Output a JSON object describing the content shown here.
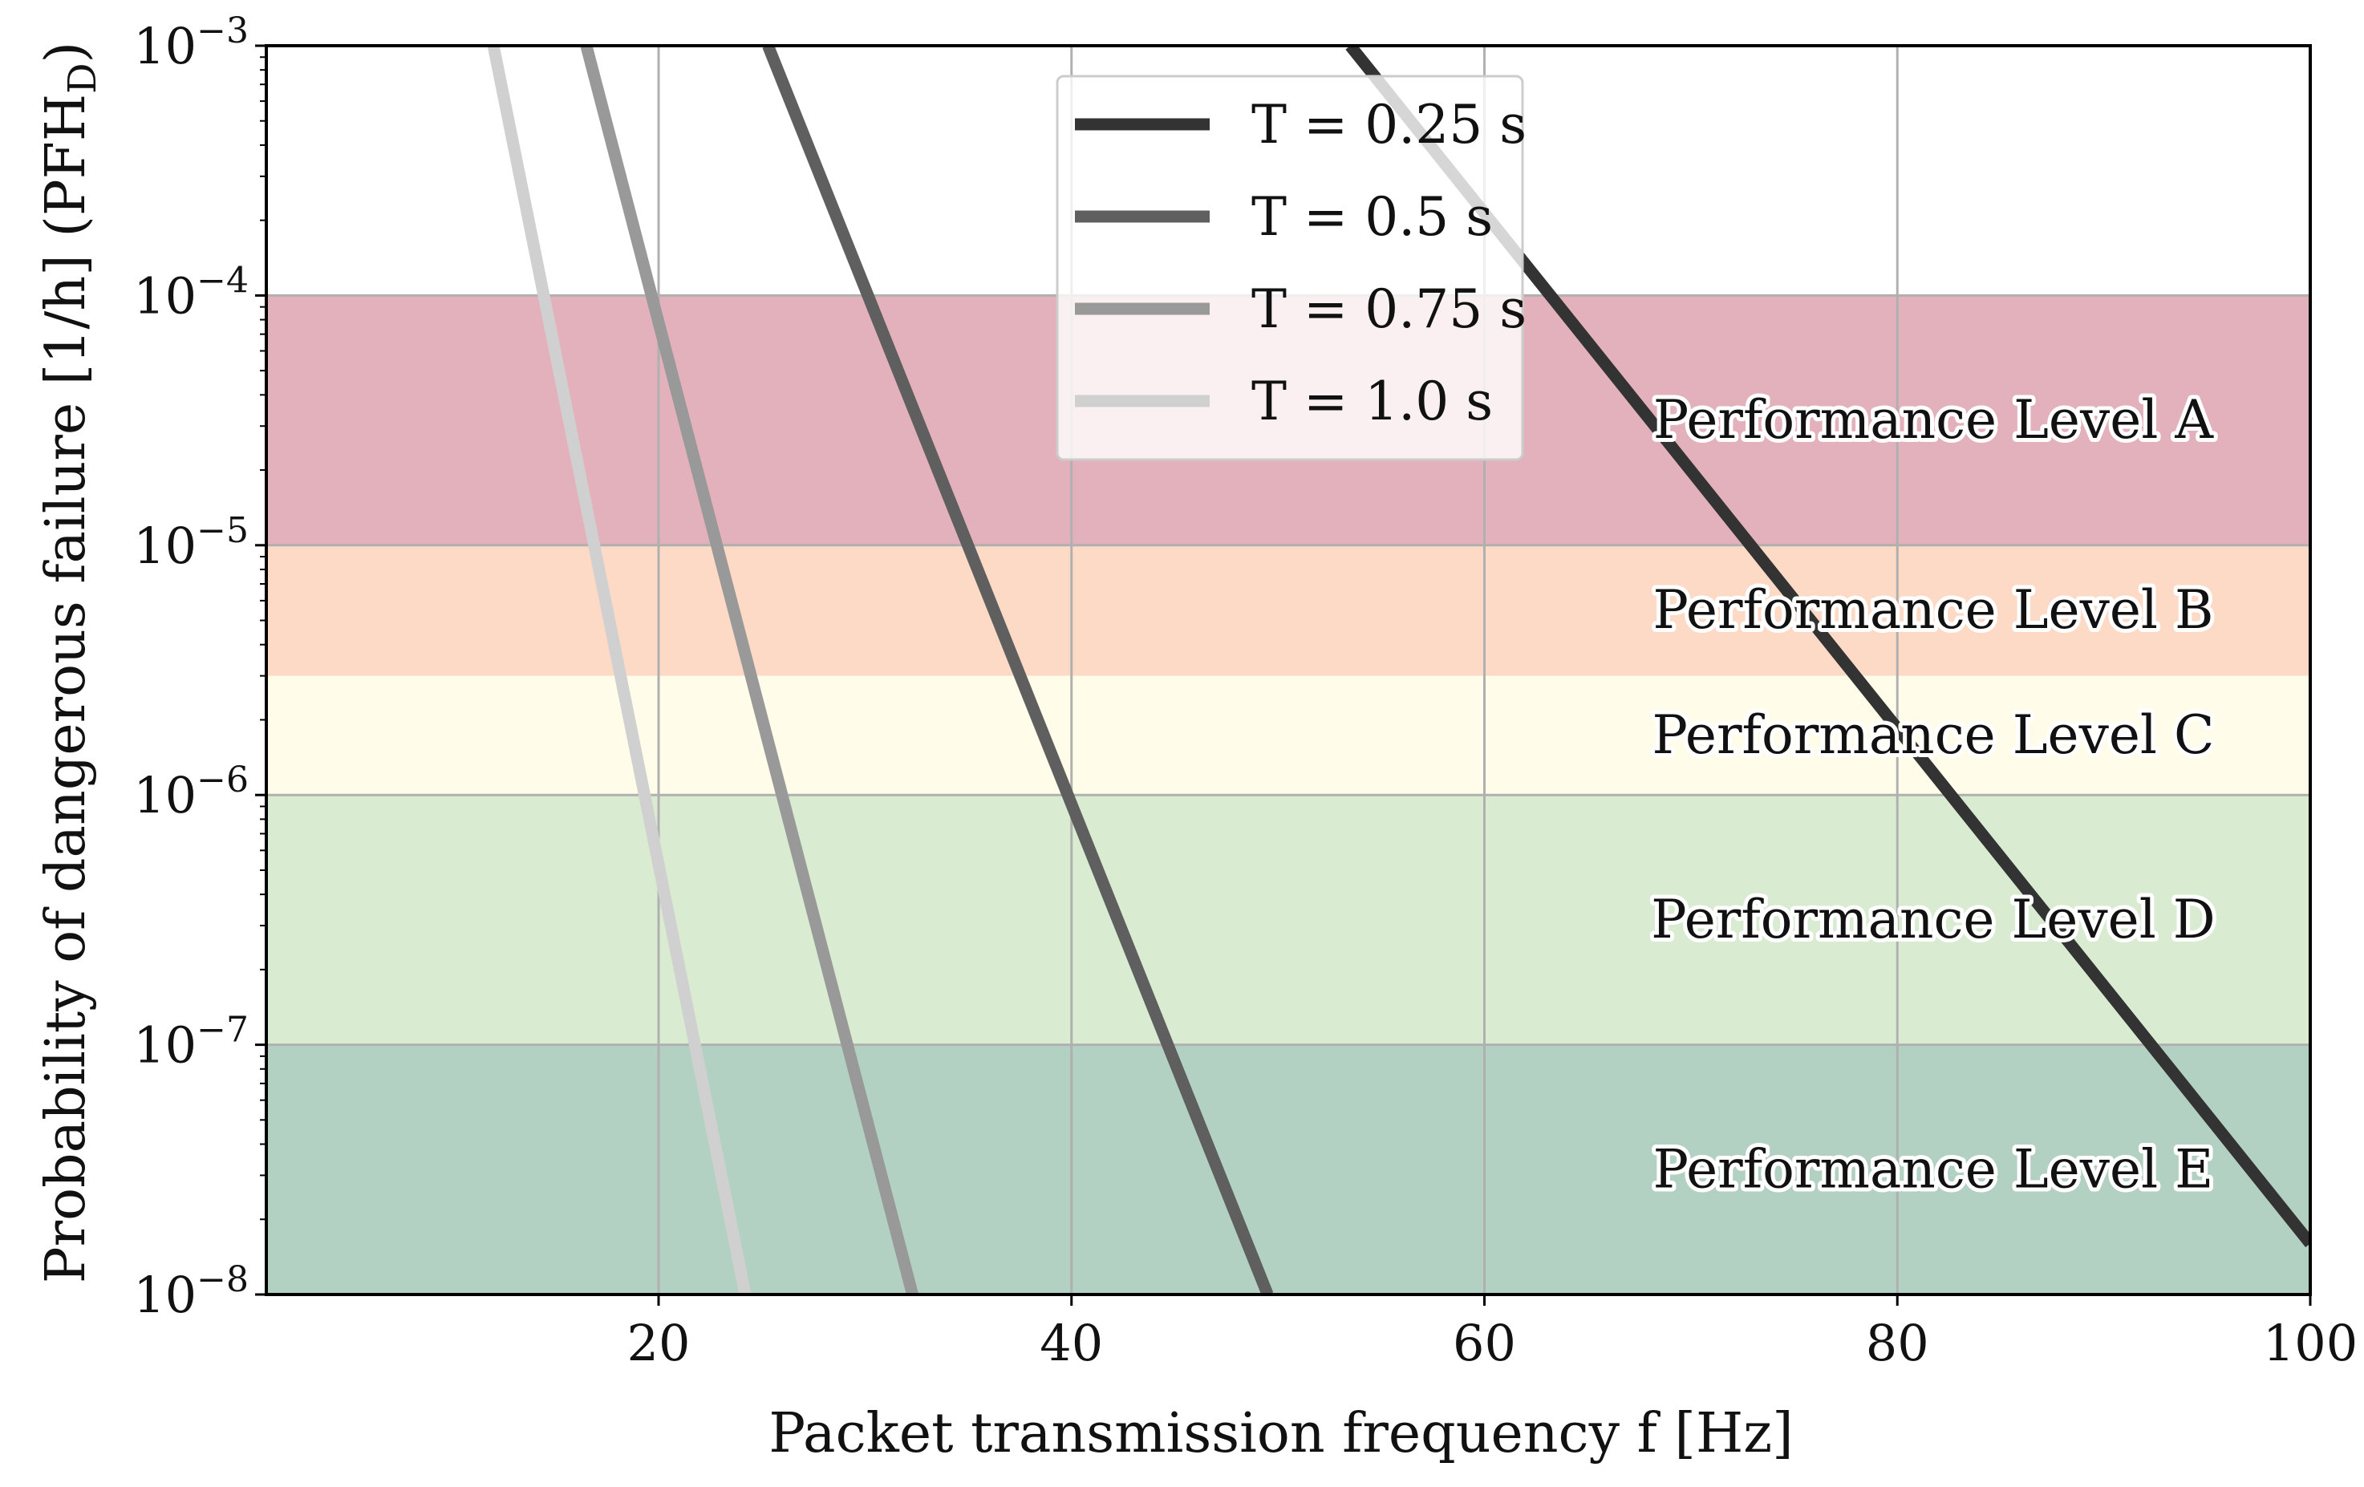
{
  "chart_data": {
    "type": "line",
    "title": "",
    "xlabel": "Packet transmission frequency f [Hz]",
    "ylabel": "Probability of dangerous failure [1/h] (PFH",
    "ylabel_subscript": "D",
    "ylabel_close": ")",
    "xlim": [
      1,
      100
    ],
    "ylim": [
      1e-08,
      0.001
    ],
    "yscale": "log",
    "grid": true,
    "legend_position": "top-center",
    "x_ticks": [
      {
        "value": 20,
        "label": "20"
      },
      {
        "value": 40,
        "label": "40"
      },
      {
        "value": 60,
        "label": "60"
      },
      {
        "value": 80,
        "label": "80"
      },
      {
        "value": 100,
        "label": "100"
      }
    ],
    "y_ticks": [
      {
        "value": 0.001,
        "base": "10",
        "exp": "−3"
      },
      {
        "value": 0.0001,
        "base": "10",
        "exp": "−4"
      },
      {
        "value": 1e-05,
        "base": "10",
        "exp": "−5"
      },
      {
        "value": 1e-06,
        "base": "10",
        "exp": "−6"
      },
      {
        "value": 1e-07,
        "base": "10",
        "exp": "−7"
      },
      {
        "value": 1e-08,
        "base": "10",
        "exp": "−8"
      }
    ],
    "bands": [
      {
        "label": "Performance Level A",
        "from": 1e-05,
        "to": 0.0001,
        "color": "#e3b1bb"
      },
      {
        "label": "Performance Level B",
        "from": 3e-06,
        "to": 1e-05,
        "color": "#fddac6"
      },
      {
        "label": "Performance Level C",
        "from": 1e-06,
        "to": 3e-06,
        "color": "#fffde9"
      },
      {
        "label": "Performance Level D",
        "from": 1e-07,
        "to": 1e-06,
        "color": "#d9ecd2"
      },
      {
        "label": "Performance Level E",
        "from": 1e-08,
        "to": 1e-07,
        "color": "#b3d1c2"
      }
    ],
    "series": [
      {
        "name": "T = 0.25 s",
        "color": "#333333",
        "x": [
          53.5,
          100
        ],
        "y": [
          0.001,
          1.6e-08
        ]
      },
      {
        "name": "T = 0.5 s",
        "color": "#5f5f5f",
        "x": [
          25.3,
          49.5
        ],
        "y": [
          0.001,
          1e-08
        ]
      },
      {
        "name": "T = 0.75 s",
        "color": "#999999",
        "x": [
          16.5,
          32.3
        ],
        "y": [
          0.001,
          1e-08
        ]
      },
      {
        "name": "T = 1.0 s",
        "color": "#d0d0d0",
        "x": [
          12,
          24.2
        ],
        "y": [
          0.001,
          1e-08
        ]
      }
    ]
  }
}
